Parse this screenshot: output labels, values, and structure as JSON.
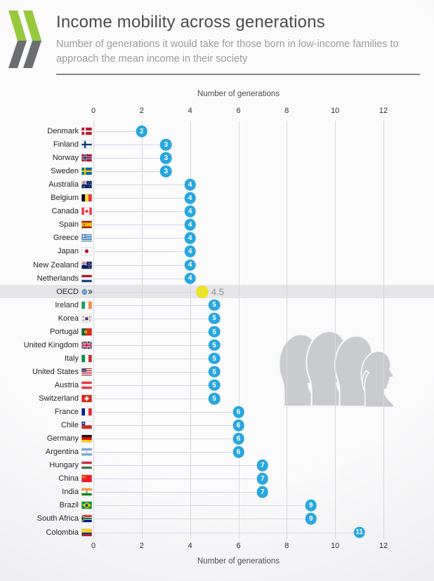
{
  "header": {
    "title": "Income mobility across generations",
    "subtitle": "Number of generations it would take for those born in low-income families to approach the mean income in their society"
  },
  "chart_data": {
    "type": "scatter",
    "title": "Income mobility across generations",
    "xlabel": "Number of generations",
    "xlim": [
      0,
      12
    ],
    "xticks": [
      0,
      2,
      4,
      6,
      8,
      10,
      12
    ],
    "grid": true,
    "legend": false,
    "categories": [
      "Denmark",
      "Finland",
      "Norway",
      "Sweden",
      "Australia",
      "Belgium",
      "Canada",
      "Spain",
      "Greece",
      "Japan",
      "New Zealand",
      "Netherlands",
      "OECD",
      "Ireland",
      "Korea",
      "Portugal",
      "United Kingdom",
      "Italy",
      "United States",
      "Austria",
      "Switzerland",
      "France",
      "Chile",
      "Germany",
      "Argentina",
      "Hungary",
      "China",
      "India",
      "Brazil",
      "South Africa",
      "Colombia"
    ],
    "values": [
      2,
      3,
      3,
      3,
      4,
      4,
      4,
      4,
      4,
      4,
      4,
      4,
      4.5,
      5,
      5,
      5,
      5,
      5,
      5,
      5,
      5,
      6,
      6,
      6,
      6,
      7,
      7,
      7,
      9,
      9,
      11
    ],
    "flags": [
      "denmark",
      "finland",
      "norway",
      "sweden",
      "australia",
      "belgium",
      "canada",
      "spain",
      "greece",
      "japan",
      "new-zealand",
      "netherlands",
      "oecd",
      "ireland",
      "korea",
      "portugal",
      "united-kingdom",
      "italy",
      "united-states",
      "austria",
      "switzerland",
      "france",
      "chile",
      "germany",
      "argentina",
      "hungary",
      "china",
      "india",
      "brazil",
      "south-africa",
      "colombia"
    ],
    "highlight": {
      "category": "OECD",
      "value": 4.5,
      "value_label": "4.5"
    }
  },
  "colors": {
    "dot": "#29a7de",
    "dot_text": "#ffffff",
    "highlight_dot": "#e9e32a",
    "highlight_band": "#e6e6e8",
    "gridline": "#d9d9dd",
    "leader_line": "#d5d9e1",
    "logo_green": "#97c93d",
    "logo_gray": "#6b6d70",
    "silhouette": "#c9cbce",
    "title_text": "#4a4a4a",
    "subtitle_text": "#9c9c9c"
  }
}
